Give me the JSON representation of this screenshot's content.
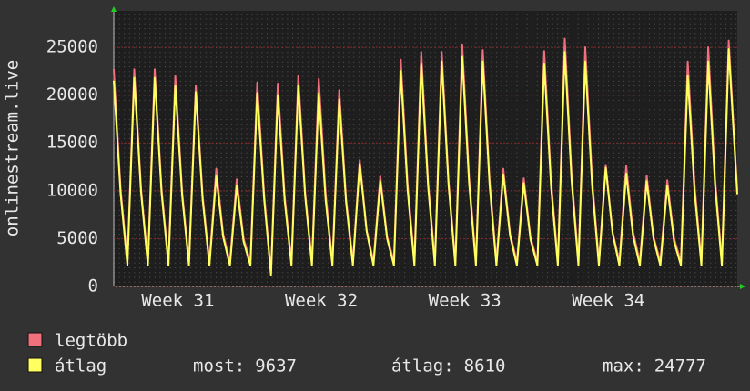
{
  "chart_data": {
    "type": "line",
    "ylabel": "onlinestream.live",
    "x": [
      0,
      8,
      16,
      24,
      32,
      40,
      48,
      56,
      64,
      72,
      80,
      88,
      96,
      104,
      112,
      120,
      128,
      136,
      144,
      152,
      160,
      168,
      176,
      184,
      192,
      200,
      208,
      216,
      224,
      232,
      240,
      248,
      256,
      264,
      272,
      280,
      288,
      296,
      304,
      312,
      320,
      328,
      336,
      344,
      352,
      360,
      368,
      376,
      384,
      392,
      400,
      408,
      416,
      424,
      432,
      440,
      448,
      456,
      464,
      472,
      480,
      488,
      496,
      504,
      512,
      520,
      528,
      536,
      544,
      552,
      560,
      568,
      576,
      584,
      592,
      600,
      608,
      616,
      624,
      632,
      640,
      648,
      656,
      664,
      672,
      680,
      688,
      696,
      704,
      712,
      720,
      730
    ],
    "xlim": [
      0,
      730
    ],
    "xticks": [
      {
        "value": 75,
        "label": "Week 31"
      },
      {
        "value": 243,
        "label": "Week 32"
      },
      {
        "value": 411,
        "label": "Week 33"
      },
      {
        "value": 579,
        "label": "Week 34"
      }
    ],
    "ylim": [
      0,
      28800
    ],
    "yticks": [
      0,
      5000,
      10000,
      15000,
      20000,
      25000
    ],
    "grid": true,
    "series": [
      {
        "name": "legtöbb",
        "color": "#f0707c",
        "values": [
          22700,
          10200,
          2600,
          22700,
          10200,
          2600,
          22700,
          10200,
          2600,
          22000,
          9900,
          2600,
          21000,
          9500,
          2600,
          12300,
          5500,
          2600,
          11200,
          5000,
          2600,
          21300,
          9600,
          1500,
          21200,
          9500,
          2600,
          22000,
          9900,
          2600,
          21700,
          9800,
          2600,
          20500,
          9200,
          2600,
          13200,
          5900,
          2600,
          11500,
          5200,
          2600,
          23700,
          10700,
          2600,
          24500,
          11000,
          2600,
          24500,
          11000,
          2600,
          25300,
          11400,
          2600,
          24700,
          11100,
          2600,
          12300,
          5500,
          2600,
          11300,
          5100,
          2600,
          24600,
          11100,
          2600,
          25900,
          11700,
          2600,
          25000,
          11300,
          2600,
          12700,
          5700,
          2600,
          12600,
          5700,
          2600,
          11600,
          5200,
          2600,
          11100,
          5000,
          2600,
          23500,
          10600,
          2600,
          25000,
          11300,
          2600,
          25700,
          10000
        ]
      },
      {
        "name": "átlag",
        "color": "#ffff60",
        "values": [
          21500,
          9700,
          2200,
          21800,
          9800,
          2200,
          21800,
          9800,
          2200,
          21000,
          9500,
          2200,
          20300,
          9100,
          2200,
          11500,
          5200,
          2200,
          10500,
          4700,
          2200,
          20200,
          9100,
          1200,
          20000,
          9000,
          2200,
          21000,
          9500,
          2200,
          20200,
          9100,
          2200,
          19500,
          8800,
          2200,
          12800,
          5800,
          2200,
          11000,
          5000,
          2200,
          22500,
          10100,
          2200,
          23300,
          10500,
          2200,
          23500,
          10600,
          2200,
          24000,
          10800,
          2200,
          23500,
          10600,
          2200,
          11700,
          5300,
          2200,
          10800,
          4900,
          2200,
          23300,
          10500,
          2200,
          24500,
          11000,
          2200,
          23500,
          10600,
          2200,
          12400,
          5600,
          2200,
          11800,
          5300,
          2200,
          11000,
          5000,
          2200,
          10500,
          4700,
          2200,
          22000,
          9900,
          2200,
          23500,
          10600,
          2200,
          24800,
          9637
        ]
      }
    ],
    "stats": [
      {
        "label": "most:",
        "value": 9637
      },
      {
        "label": "átlag:",
        "value": 8610
      },
      {
        "label": "max:",
        "value": 24777
      }
    ]
  }
}
